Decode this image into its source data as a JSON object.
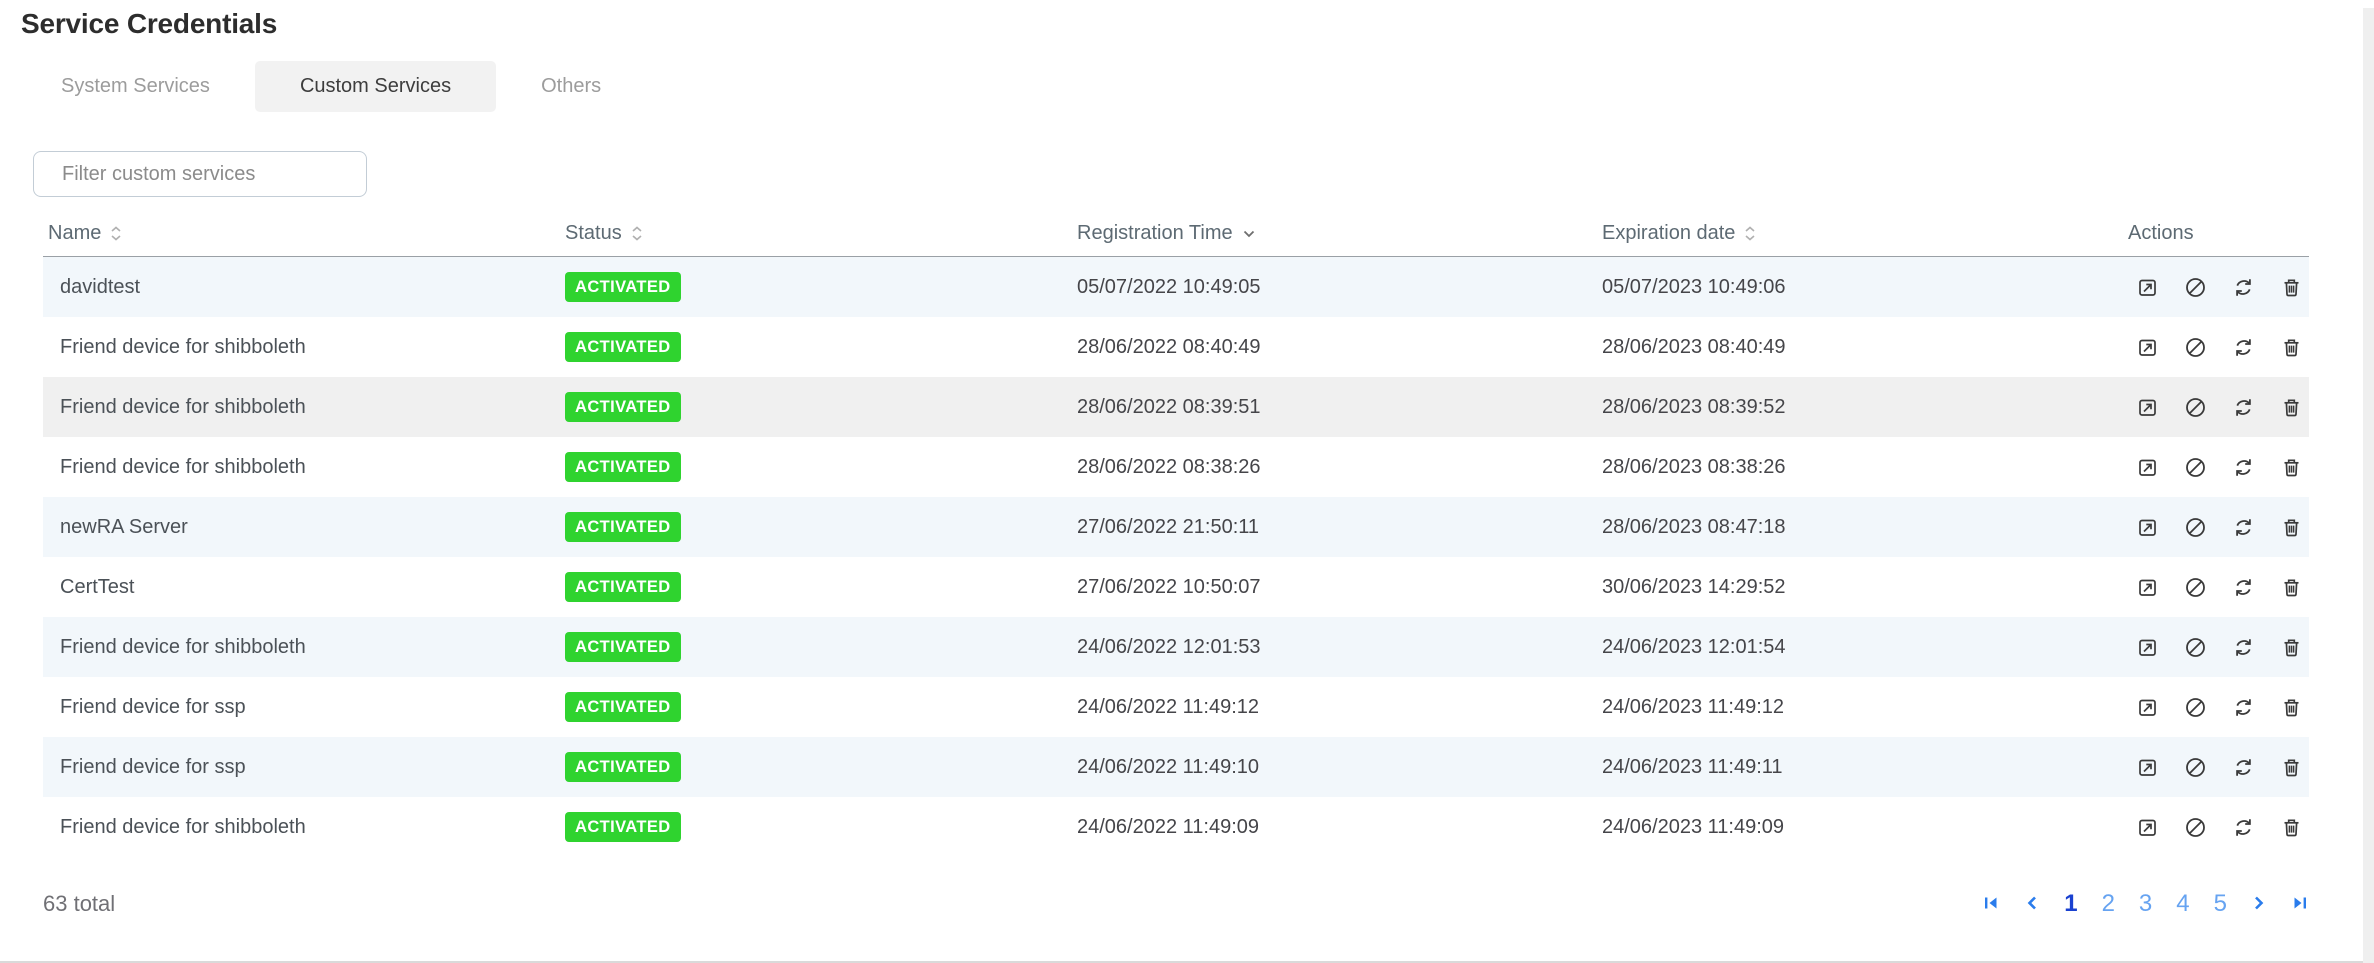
{
  "page": {
    "title": "Service Credentials"
  },
  "tabs": [
    {
      "label": "System Services",
      "active": false
    },
    {
      "label": "Custom Services",
      "active": true
    },
    {
      "label": "Others",
      "active": false
    }
  ],
  "filter": {
    "placeholder": "Filter custom services",
    "value": ""
  },
  "table": {
    "columns": [
      {
        "label": "Name",
        "sort": "both"
      },
      {
        "label": "Status",
        "sort": "both"
      },
      {
        "label": "Registration Time",
        "sort": "desc"
      },
      {
        "label": "Expiration date",
        "sort": "both"
      },
      {
        "label": "Actions",
        "sort": "none"
      }
    ],
    "hovered_row_index": 2,
    "actions": [
      "open-icon",
      "ban-icon",
      "renew-icon",
      "trash-icon"
    ],
    "rows": [
      {
        "name": "davidtest",
        "status": "ACTIVATED",
        "registration": "05/07/2022 10:49:05",
        "expiration": "05/07/2023 10:49:06"
      },
      {
        "name": "Friend device for shibboleth",
        "status": "ACTIVATED",
        "registration": "28/06/2022 08:40:49",
        "expiration": "28/06/2023 08:40:49"
      },
      {
        "name": "Friend device for shibboleth",
        "status": "ACTIVATED",
        "registration": "28/06/2022 08:39:51",
        "expiration": "28/06/2023 08:39:52"
      },
      {
        "name": "Friend device for shibboleth",
        "status": "ACTIVATED",
        "registration": "28/06/2022 08:38:26",
        "expiration": "28/06/2023 08:38:26"
      },
      {
        "name": "newRA Server",
        "status": "ACTIVATED",
        "registration": "27/06/2022 21:50:11",
        "expiration": "28/06/2023 08:47:18"
      },
      {
        "name": "CertTest",
        "status": "ACTIVATED",
        "registration": "27/06/2022 10:50:07",
        "expiration": "30/06/2023 14:29:52"
      },
      {
        "name": "Friend device for shibboleth",
        "status": "ACTIVATED",
        "registration": "24/06/2022 12:01:53",
        "expiration": "24/06/2023 12:01:54"
      },
      {
        "name": "Friend device for ssp",
        "status": "ACTIVATED",
        "registration": "24/06/2022 11:49:12",
        "expiration": "24/06/2023 11:49:12"
      },
      {
        "name": "Friend device for ssp",
        "status": "ACTIVATED",
        "registration": "24/06/2022 11:49:10",
        "expiration": "24/06/2023 11:49:11"
      },
      {
        "name": "Friend device for shibboleth",
        "status": "ACTIVATED",
        "registration": "24/06/2022 11:49:09",
        "expiration": "24/06/2023 11:49:09"
      }
    ]
  },
  "footer": {
    "total": "63 total"
  },
  "pagination": {
    "pages": [
      "1",
      "2",
      "3",
      "4",
      "5"
    ],
    "current": "1"
  },
  "colors": {
    "status_activated": "#2FD32F",
    "row_stripe": "#F2F7FB",
    "row_hover": "#F0F0F0",
    "pagination_active": "#1A41D0",
    "pagination_inactive": "#66A3F1",
    "pagination_arrow": "#2A7CEC",
    "tab_active_bg": "#F2F2F2"
  }
}
